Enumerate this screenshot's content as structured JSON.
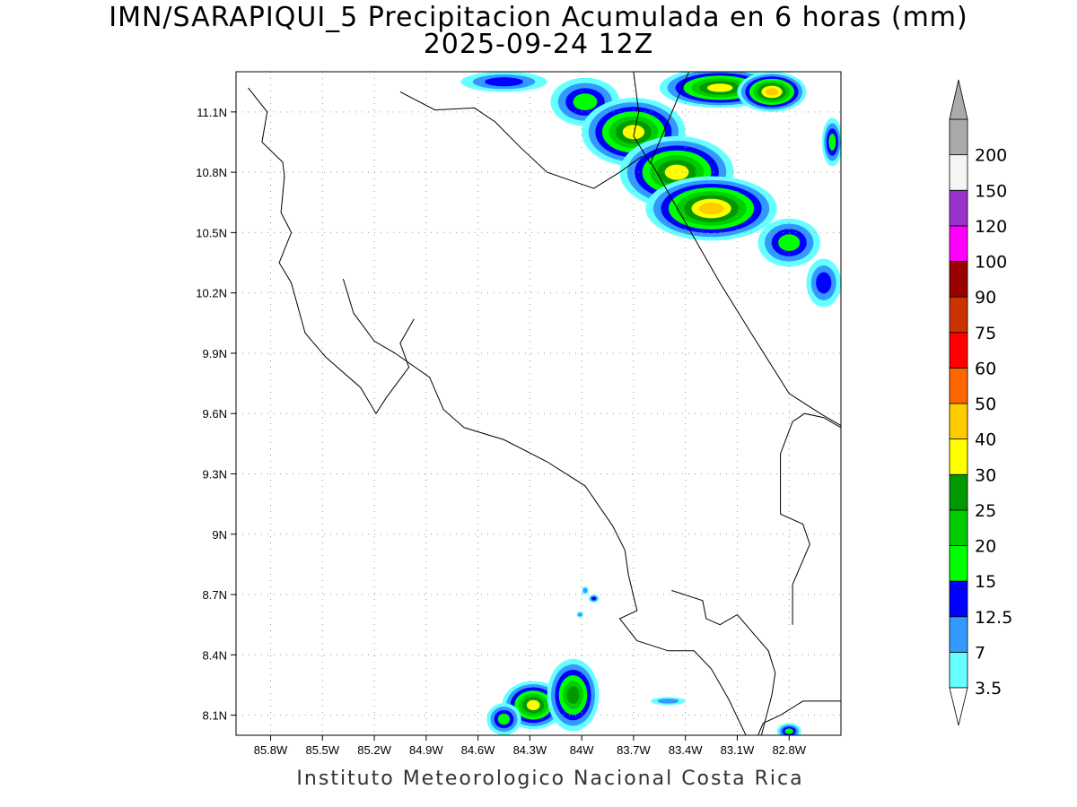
{
  "title_line1": "IMN/SARAPIQUI_5 Precipitacion Acumulada en 6 horas (mm)",
  "title_line2": "2025-09-24 12Z",
  "credit": "Instituto Meteorologico Nacional Costa Rica",
  "map": {
    "lon_range": [
      -86.0,
      -82.5
    ],
    "lat_range": [
      8.0,
      11.3
    ],
    "x_ticks": [
      {
        "lon": -85.8,
        "label": "85.8W"
      },
      {
        "lon": -85.5,
        "label": "85.5W"
      },
      {
        "lon": -85.2,
        "label": "85.2W"
      },
      {
        "lon": -84.9,
        "label": "84.9W"
      },
      {
        "lon": -84.6,
        "label": "84.6W"
      },
      {
        "lon": -84.3,
        "label": "84.3W"
      },
      {
        "lon": -84.0,
        "label": "84W"
      },
      {
        "lon": -83.7,
        "label": "83.7W"
      },
      {
        "lon": -83.4,
        "label": "83.4W"
      },
      {
        "lon": -83.1,
        "label": "83.1W"
      },
      {
        "lon": -82.8,
        "label": "82.8W"
      }
    ],
    "y_ticks": [
      {
        "lat": 11.1,
        "label": "11.1N"
      },
      {
        "lat": 10.8,
        "label": "10.8N"
      },
      {
        "lat": 10.5,
        "label": "10.5N"
      },
      {
        "lat": 10.2,
        "label": "10.2N"
      },
      {
        "lat": 9.9,
        "label": "9.9N"
      },
      {
        "lat": 9.6,
        "label": "9.6N"
      },
      {
        "lat": 9.3,
        "label": "9.3N"
      },
      {
        "lat": 9.0,
        "label": "9N"
      },
      {
        "lat": 8.7,
        "label": "8.7N"
      },
      {
        "lat": 8.4,
        "label": "8.4N"
      },
      {
        "lat": 8.1,
        "label": "8.1N"
      }
    ],
    "grid": "dotted",
    "coastlines": [
      [
        [
          -85.93,
          11.22
        ],
        [
          -85.82,
          11.1
        ],
        [
          -85.85,
          10.95
        ],
        [
          -85.73,
          10.85
        ],
        [
          -85.72,
          10.78
        ],
        [
          -85.74,
          10.6
        ],
        [
          -85.68,
          10.5
        ],
        [
          -85.75,
          10.35
        ],
        [
          -85.68,
          10.25
        ],
        [
          -85.6,
          10.0
        ],
        [
          -85.48,
          9.88
        ],
        [
          -85.28,
          9.73
        ],
        [
          -85.19,
          9.6
        ],
        [
          -85.13,
          9.68
        ],
        [
          -85.0,
          9.83
        ],
        [
          -85.05,
          9.95
        ],
        [
          -84.97,
          10.07
        ]
      ],
      [
        [
          -85.38,
          10.27
        ],
        [
          -85.32,
          10.1
        ],
        [
          -85.2,
          9.96
        ],
        [
          -85.08,
          9.9
        ],
        [
          -84.88,
          9.78
        ],
        [
          -84.8,
          9.62
        ],
        [
          -84.68,
          9.53
        ],
        [
          -84.45,
          9.47
        ],
        [
          -84.2,
          9.36
        ],
        [
          -83.98,
          9.24
        ],
        [
          -83.82,
          9.04
        ],
        [
          -83.75,
          8.92
        ],
        [
          -83.73,
          8.8
        ],
        [
          -83.68,
          8.62
        ],
        [
          -83.78,
          8.58
        ],
        [
          -83.68,
          8.47
        ],
        [
          -83.5,
          8.42
        ],
        [
          -83.35,
          8.42
        ],
        [
          -83.25,
          8.33
        ],
        [
          -83.15,
          8.18
        ],
        [
          -83.05,
          8.0
        ]
      ],
      [
        [
          -83.48,
          8.72
        ],
        [
          -83.3,
          8.67
        ],
        [
          -83.28,
          8.58
        ],
        [
          -83.2,
          8.55
        ],
        [
          -83.1,
          8.6
        ],
        [
          -83.0,
          8.5
        ],
        [
          -82.92,
          8.42
        ],
        [
          -82.88,
          8.31
        ],
        [
          -82.9,
          8.2
        ],
        [
          -82.96,
          8.0
        ]
      ],
      [
        [
          -82.98,
          8.0
        ],
        [
          -82.95,
          8.06
        ],
        [
          -82.85,
          8.1
        ],
        [
          -82.72,
          8.17
        ],
        [
          -82.5,
          8.17
        ]
      ],
      [
        [
          -82.5,
          9.53
        ],
        [
          -82.6,
          9.58
        ],
        [
          -82.71,
          9.6
        ],
        [
          -82.78,
          9.56
        ],
        [
          -82.85,
          9.4
        ],
        [
          -82.85,
          9.1
        ],
        [
          -82.72,
          9.05
        ],
        [
          -82.68,
          8.95
        ],
        [
          -82.78,
          8.75
        ],
        [
          -82.78,
          8.55
        ]
      ],
      [
        [
          -83.38,
          11.3
        ],
        [
          -83.6,
          10.85
        ],
        [
          -83.4,
          10.55
        ],
        [
          -83.2,
          10.25
        ],
        [
          -83.02,
          10.0
        ],
        [
          -82.8,
          9.7
        ],
        [
          -82.62,
          9.6
        ],
        [
          -82.5,
          9.54
        ]
      ],
      [
        [
          -85.05,
          11.2
        ],
        [
          -84.85,
          11.11
        ],
        [
          -84.62,
          11.12
        ],
        [
          -84.5,
          11.05
        ],
        [
          -84.35,
          10.92
        ],
        [
          -84.2,
          10.8
        ],
        [
          -83.93,
          10.72
        ],
        [
          -83.78,
          10.8
        ],
        [
          -83.65,
          10.88
        ]
      ]
    ],
    "border": [
      [
        -83.7,
        11.3
      ],
      [
        -83.67,
        11.1
      ],
      [
        -83.7,
        10.98
      ],
      [
        -83.6,
        10.84
      ]
    ],
    "precip_cells": [
      {
        "lon": -84.45,
        "lat": 11.25,
        "rx": 0.25,
        "ry": 0.05,
        "level": 2
      },
      {
        "lon": -83.98,
        "lat": 11.15,
        "rx": 0.2,
        "ry": 0.12,
        "level": 3
      },
      {
        "lon": -83.7,
        "lat": 11.0,
        "rx": 0.3,
        "ry": 0.17,
        "level": 6
      },
      {
        "lon": -83.45,
        "lat": 10.8,
        "rx": 0.33,
        "ry": 0.18,
        "level": 6
      },
      {
        "lon": -83.25,
        "lat": 10.62,
        "rx": 0.38,
        "ry": 0.16,
        "level": 7
      },
      {
        "lon": -83.2,
        "lat": 11.22,
        "rx": 0.35,
        "ry": 0.1,
        "level": 6
      },
      {
        "lon": -82.9,
        "lat": 11.2,
        "rx": 0.2,
        "ry": 0.1,
        "level": 7
      },
      {
        "lon": -82.8,
        "lat": 10.45,
        "rx": 0.18,
        "ry": 0.12,
        "level": 3
      },
      {
        "lon": -82.6,
        "lat": 10.25,
        "rx": 0.1,
        "ry": 0.12,
        "level": 2
      },
      {
        "lon": -82.55,
        "lat": 10.95,
        "rx": 0.06,
        "ry": 0.12,
        "level": 3
      },
      {
        "lon": -84.28,
        "lat": 8.15,
        "rx": 0.18,
        "ry": 0.12,
        "level": 6
      },
      {
        "lon": -84.05,
        "lat": 8.2,
        "rx": 0.15,
        "ry": 0.18,
        "level": 5
      },
      {
        "lon": -84.45,
        "lat": 8.08,
        "rx": 0.1,
        "ry": 0.08,
        "level": 3
      },
      {
        "lon": -83.98,
        "lat": 8.72,
        "rx": 0.02,
        "ry": 0.02,
        "level": 1
      },
      {
        "lon": -83.93,
        "lat": 8.68,
        "rx": 0.03,
        "ry": 0.02,
        "level": 2
      },
      {
        "lon": -84.01,
        "lat": 8.6,
        "rx": 0.02,
        "ry": 0.015,
        "level": 1
      },
      {
        "lon": -83.5,
        "lat": 8.17,
        "rx": 0.1,
        "ry": 0.02,
        "level": 1
      },
      {
        "lon": -82.8,
        "lat": 8.02,
        "rx": 0.07,
        "ry": 0.04,
        "level": 3
      }
    ]
  },
  "colorbar": {
    "bins": [
      {
        "color": "#66ffff",
        "label": "3.5"
      },
      {
        "color": "#3399ff",
        "label": "7"
      },
      {
        "color": "#0000ff",
        "label": "12.5"
      },
      {
        "color": "#00ff00",
        "label": "15"
      },
      {
        "color": "#00cc00",
        "label": "20"
      },
      {
        "color": "#009900",
        "label": "25"
      },
      {
        "color": "#ffff00",
        "label": "30"
      },
      {
        "color": "#ffcc00",
        "label": "40"
      },
      {
        "color": "#ff6600",
        "label": "50"
      },
      {
        "color": "#ff0000",
        "label": "60"
      },
      {
        "color": "#cc3300",
        "label": "75"
      },
      {
        "color": "#990000",
        "label": "90"
      },
      {
        "color": "#ff00ff",
        "label": "100"
      },
      {
        "color": "#9933cc",
        "label": "120"
      },
      {
        "color": "#f5f5f5",
        "label": "150"
      },
      {
        "color": "#aaaaaa",
        "label": "200"
      }
    ]
  }
}
